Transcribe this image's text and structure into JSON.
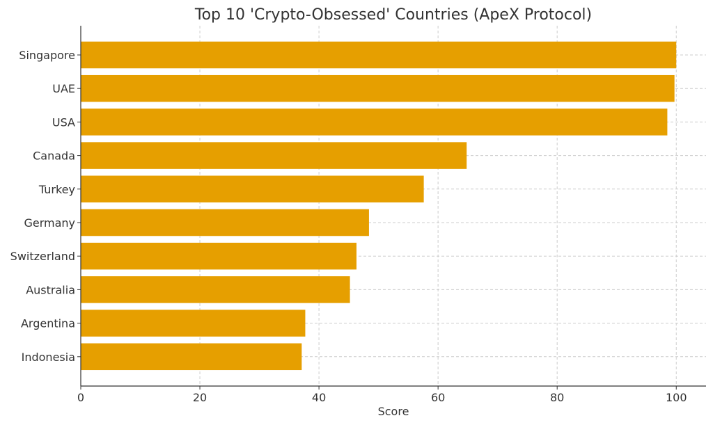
{
  "chart_data": {
    "type": "bar",
    "orientation": "horizontal",
    "title": "Top 10 'Crypto-Obsessed' Countries (ApeX Protocol)",
    "xlabel": "Score",
    "ylabel": "",
    "categories": [
      "Singapore",
      "UAE",
      "USA",
      "Canada",
      "Turkey",
      "Germany",
      "Switzerland",
      "Australia",
      "Argentina",
      "Indonesia"
    ],
    "values": [
      100,
      99.7,
      98.5,
      64.8,
      57.6,
      48.4,
      46.3,
      45.2,
      37.7,
      37.1
    ],
    "xlim": [
      0,
      105
    ],
    "xticks": [
      0,
      20,
      40,
      60,
      80,
      100
    ],
    "grid": true,
    "bar_color": "#E69F00"
  }
}
